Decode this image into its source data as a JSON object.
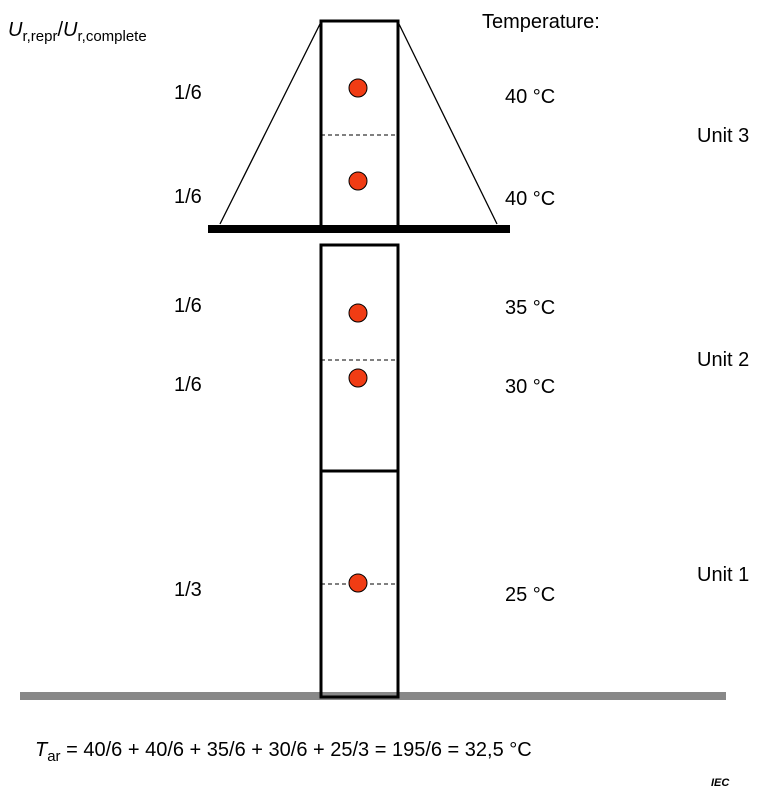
{
  "header": {
    "ratio": {
      "numerator": "U",
      "numerator_sub": "r,repr",
      "slash": "/",
      "denominator": "U",
      "denominator_sub": "r,complete"
    },
    "temperature": "Temperature:"
  },
  "rows": [
    {
      "fraction": "1/6",
      "temperature": "40 °C"
    },
    {
      "fraction": "1/6",
      "temperature": "40 °C"
    },
    {
      "fraction": "1/6",
      "temperature": "35 °C"
    },
    {
      "fraction": "1/6",
      "temperature": "30 °C"
    },
    {
      "fraction": "1/3",
      "temperature": "25 °C"
    }
  ],
  "units": [
    "Unit 3",
    "Unit 2",
    "Unit 1"
  ],
  "formula": {
    "symbol": "T",
    "symbol_sub": "ar",
    "expression": " = 40/6 + 40/6 + 35/6 + 30/6 + 25/3 = 195/6 = 32,5 °C"
  },
  "source": "IEC"
}
